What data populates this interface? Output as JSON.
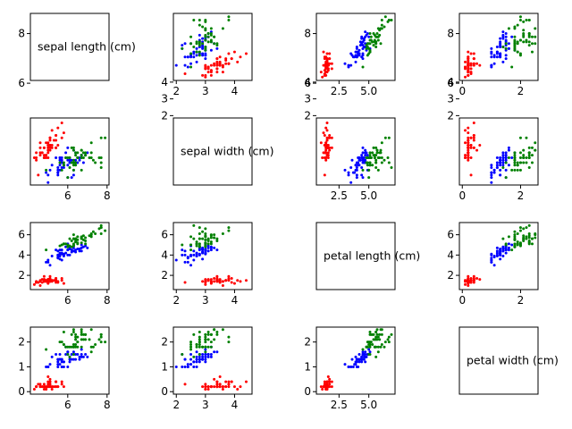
{
  "chart_data": {
    "type": "scatter-matrix",
    "variables": [
      "sepal length (cm)",
      "sepal width (cm)",
      "petal length (cm)",
      "petal width (cm)"
    ],
    "axis_limits": [
      [
        4.1,
        8.1
      ],
      [
        1.9,
        4.6
      ],
      [
        0.6,
        7.2
      ],
      [
        -0.1,
        2.6
      ]
    ],
    "ticks": [
      {
        "values": [
          6,
          8
        ],
        "labels": [
          "6",
          "8"
        ]
      },
      {
        "values": [
          2,
          3,
          4
        ],
        "labels": [
          "2",
          "3",
          "4"
        ]
      },
      {
        "values": [
          2.5,
          5.0
        ],
        "labels": [
          "2.5",
          "5.0"
        ]
      },
      {
        "values": [
          0,
          2
        ],
        "labels": [
          "0",
          "2"
        ]
      }
    ],
    "row_ticks": [
      {
        "values": [
          2,
          3,
          4
        ],
        "labels": [
          "2",
          "3",
          "4"
        ]
      },
      {
        "values": [
          6,
          8
        ],
        "labels": [
          "6",
          "8"
        ]
      },
      {
        "values": [
          2,
          4,
          6
        ],
        "labels": [
          "2",
          "4",
          "6"
        ]
      },
      {
        "values": [
          0,
          1,
          2
        ],
        "labels": [
          "0",
          "1",
          "2"
        ]
      }
    ],
    "series": [
      {
        "color": "#ff0000",
        "count": 50
      },
      {
        "color": "#0000ff",
        "count": 50
      },
      {
        "color": "#008000",
        "count": 50
      }
    ],
    "data": [
      [
        5.1,
        3.5,
        1.4,
        0.2,
        0
      ],
      [
        4.9,
        3.0,
        1.4,
        0.2,
        0
      ],
      [
        4.7,
        3.2,
        1.3,
        0.2,
        0
      ],
      [
        4.6,
        3.1,
        1.5,
        0.2,
        0
      ],
      [
        5.0,
        3.6,
        1.4,
        0.2,
        0
      ],
      [
        5.4,
        3.9,
        1.7,
        0.4,
        0
      ],
      [
        4.6,
        3.4,
        1.4,
        0.3,
        0
      ],
      [
        5.0,
        3.4,
        1.5,
        0.2,
        0
      ],
      [
        4.4,
        2.9,
        1.4,
        0.2,
        0
      ],
      [
        4.9,
        3.1,
        1.5,
        0.1,
        0
      ],
      [
        5.4,
        3.7,
        1.5,
        0.2,
        0
      ],
      [
        4.8,
        3.4,
        1.6,
        0.2,
        0
      ],
      [
        4.8,
        3.0,
        1.4,
        0.1,
        0
      ],
      [
        4.3,
        3.0,
        1.1,
        0.1,
        0
      ],
      [
        5.8,
        4.0,
        1.2,
        0.2,
        0
      ],
      [
        5.7,
        4.4,
        1.5,
        0.4,
        0
      ],
      [
        5.4,
        3.9,
        1.3,
        0.4,
        0
      ],
      [
        5.1,
        3.5,
        1.4,
        0.3,
        0
      ],
      [
        5.7,
        3.8,
        1.7,
        0.3,
        0
      ],
      [
        5.1,
        3.8,
        1.5,
        0.3,
        0
      ],
      [
        5.4,
        3.4,
        1.7,
        0.2,
        0
      ],
      [
        5.1,
        3.7,
        1.5,
        0.4,
        0
      ],
      [
        4.6,
        3.6,
        1.0,
        0.2,
        0
      ],
      [
        5.1,
        3.3,
        1.7,
        0.5,
        0
      ],
      [
        4.8,
        3.4,
        1.9,
        0.2,
        0
      ],
      [
        5.0,
        3.0,
        1.6,
        0.2,
        0
      ],
      [
        5.0,
        3.4,
        1.6,
        0.4,
        0
      ],
      [
        5.2,
        3.5,
        1.5,
        0.2,
        0
      ],
      [
        5.2,
        3.4,
        1.4,
        0.2,
        0
      ],
      [
        4.7,
        3.2,
        1.6,
        0.2,
        0
      ],
      [
        4.8,
        3.1,
        1.6,
        0.2,
        0
      ],
      [
        5.4,
        3.4,
        1.5,
        0.4,
        0
      ],
      [
        5.2,
        4.1,
        1.5,
        0.1,
        0
      ],
      [
        5.5,
        4.2,
        1.4,
        0.2,
        0
      ],
      [
        4.9,
        3.1,
        1.5,
        0.2,
        0
      ],
      [
        5.0,
        3.2,
        1.2,
        0.2,
        0
      ],
      [
        5.5,
        3.5,
        1.3,
        0.2,
        0
      ],
      [
        4.9,
        3.6,
        1.4,
        0.1,
        0
      ],
      [
        4.4,
        3.0,
        1.3,
        0.2,
        0
      ],
      [
        5.1,
        3.4,
        1.5,
        0.2,
        0
      ],
      [
        5.0,
        3.5,
        1.3,
        0.3,
        0
      ],
      [
        4.5,
        2.3,
        1.3,
        0.3,
        0
      ],
      [
        4.4,
        3.2,
        1.3,
        0.2,
        0
      ],
      [
        5.0,
        3.5,
        1.6,
        0.6,
        0
      ],
      [
        5.1,
        3.8,
        1.9,
        0.4,
        0
      ],
      [
        4.8,
        3.0,
        1.4,
        0.3,
        0
      ],
      [
        5.1,
        3.8,
        1.6,
        0.2,
        0
      ],
      [
        4.6,
        3.2,
        1.4,
        0.2,
        0
      ],
      [
        5.3,
        3.7,
        1.5,
        0.2,
        0
      ],
      [
        5.0,
        3.3,
        1.4,
        0.2,
        0
      ],
      [
        7.0,
        3.2,
        4.7,
        1.4,
        1
      ],
      [
        6.4,
        3.2,
        4.5,
        1.5,
        1
      ],
      [
        6.9,
        3.1,
        4.9,
        1.5,
        1
      ],
      [
        5.5,
        2.3,
        4.0,
        1.3,
        1
      ],
      [
        6.5,
        2.8,
        4.6,
        1.5,
        1
      ],
      [
        5.7,
        2.8,
        4.5,
        1.3,
        1
      ],
      [
        6.3,
        3.3,
        4.7,
        1.6,
        1
      ],
      [
        4.9,
        2.4,
        3.3,
        1.0,
        1
      ],
      [
        6.6,
        2.9,
        4.6,
        1.3,
        1
      ],
      [
        5.2,
        2.7,
        3.9,
        1.4,
        1
      ],
      [
        5.0,
        2.0,
        3.5,
        1.0,
        1
      ],
      [
        5.9,
        3.0,
        4.2,
        1.5,
        1
      ],
      [
        6.0,
        2.2,
        4.0,
        1.0,
        1
      ],
      [
        6.1,
        2.9,
        4.7,
        1.4,
        1
      ],
      [
        5.6,
        2.9,
        3.6,
        1.3,
        1
      ],
      [
        6.7,
        3.1,
        4.4,
        1.4,
        1
      ],
      [
        5.6,
        3.0,
        4.5,
        1.5,
        1
      ],
      [
        5.8,
        2.7,
        4.1,
        1.0,
        1
      ],
      [
        6.2,
        2.2,
        4.5,
        1.5,
        1
      ],
      [
        5.6,
        2.5,
        3.9,
        1.1,
        1
      ],
      [
        5.9,
        3.2,
        4.8,
        1.8,
        1
      ],
      [
        6.1,
        2.8,
        4.0,
        1.3,
        1
      ],
      [
        6.3,
        2.5,
        4.9,
        1.5,
        1
      ],
      [
        6.1,
        2.8,
        4.7,
        1.2,
        1
      ],
      [
        6.4,
        2.9,
        4.3,
        1.3,
        1
      ],
      [
        6.6,
        3.0,
        4.4,
        1.4,
        1
      ],
      [
        6.8,
        2.8,
        4.8,
        1.4,
        1
      ],
      [
        6.7,
        3.0,
        5.0,
        1.7,
        1
      ],
      [
        6.0,
        2.9,
        4.5,
        1.5,
        1
      ],
      [
        5.7,
        2.6,
        3.5,
        1.0,
        1
      ],
      [
        5.5,
        2.4,
        3.8,
        1.1,
        1
      ],
      [
        5.5,
        2.4,
        3.7,
        1.0,
        1
      ],
      [
        5.8,
        2.7,
        3.9,
        1.2,
        1
      ],
      [
        6.0,
        2.7,
        5.1,
        1.6,
        1
      ],
      [
        5.4,
        3.0,
        4.5,
        1.5,
        1
      ],
      [
        6.0,
        3.4,
        4.5,
        1.6,
        1
      ],
      [
        6.7,
        3.1,
        4.7,
        1.5,
        1
      ],
      [
        6.3,
        2.3,
        4.4,
        1.3,
        1
      ],
      [
        5.6,
        3.0,
        4.1,
        1.3,
        1
      ],
      [
        5.5,
        2.5,
        4.0,
        1.3,
        1
      ],
      [
        5.5,
        2.6,
        4.4,
        1.2,
        1
      ],
      [
        6.1,
        3.0,
        4.6,
        1.4,
        1
      ],
      [
        5.8,
        2.6,
        4.0,
        1.2,
        1
      ],
      [
        5.0,
        2.3,
        3.3,
        1.0,
        1
      ],
      [
        5.6,
        2.7,
        4.2,
        1.3,
        1
      ],
      [
        5.7,
        3.0,
        4.2,
        1.2,
        1
      ],
      [
        5.7,
        2.9,
        4.2,
        1.3,
        1
      ],
      [
        6.2,
        2.9,
        4.3,
        1.3,
        1
      ],
      [
        5.1,
        2.5,
        3.0,
        1.1,
        1
      ],
      [
        5.7,
        2.8,
        4.1,
        1.3,
        1
      ],
      [
        6.3,
        3.3,
        6.0,
        2.5,
        2
      ],
      [
        5.8,
        2.7,
        5.1,
        1.9,
        2
      ],
      [
        7.1,
        3.0,
        5.9,
        2.1,
        2
      ],
      [
        6.3,
        2.9,
        5.6,
        1.8,
        2
      ],
      [
        6.5,
        3.0,
        5.8,
        2.2,
        2
      ],
      [
        7.6,
        3.0,
        6.6,
        2.1,
        2
      ],
      [
        4.9,
        2.5,
        4.5,
        1.7,
        2
      ],
      [
        7.3,
        2.9,
        6.3,
        1.8,
        2
      ],
      [
        6.7,
        2.5,
        5.8,
        1.8,
        2
      ],
      [
        7.2,
        3.6,
        6.1,
        2.5,
        2
      ],
      [
        6.5,
        3.2,
        5.1,
        2.0,
        2
      ],
      [
        6.4,
        2.7,
        5.3,
        1.9,
        2
      ],
      [
        6.8,
        3.0,
        5.5,
        2.1,
        2
      ],
      [
        5.7,
        2.5,
        5.0,
        2.0,
        2
      ],
      [
        5.8,
        2.8,
        5.1,
        2.4,
        2
      ],
      [
        6.4,
        3.2,
        5.3,
        2.3,
        2
      ],
      [
        6.5,
        3.0,
        5.5,
        1.8,
        2
      ],
      [
        7.7,
        3.8,
        6.7,
        2.2,
        2
      ],
      [
        7.7,
        2.6,
        6.9,
        2.3,
        2
      ],
      [
        6.0,
        2.2,
        5.0,
        1.5,
        2
      ],
      [
        6.9,
        3.2,
        5.7,
        2.3,
        2
      ],
      [
        5.6,
        2.8,
        4.9,
        2.0,
        2
      ],
      [
        7.7,
        2.8,
        6.7,
        2.0,
        2
      ],
      [
        6.3,
        2.7,
        4.9,
        1.8,
        2
      ],
      [
        6.7,
        3.3,
        5.7,
        2.1,
        2
      ],
      [
        7.2,
        3.2,
        6.0,
        1.8,
        2
      ],
      [
        6.2,
        2.8,
        4.8,
        1.8,
        2
      ],
      [
        6.1,
        3.0,
        4.9,
        1.8,
        2
      ],
      [
        6.4,
        2.8,
        5.6,
        2.1,
        2
      ],
      [
        7.2,
        3.0,
        5.8,
        1.6,
        2
      ],
      [
        7.4,
        2.8,
        6.1,
        1.9,
        2
      ],
      [
        7.9,
        3.8,
        6.4,
        2.0,
        2
      ],
      [
        6.4,
        2.8,
        5.6,
        2.2,
        2
      ],
      [
        6.3,
        2.8,
        5.1,
        1.5,
        2
      ],
      [
        6.1,
        2.6,
        5.6,
        1.4,
        2
      ],
      [
        7.7,
        3.0,
        6.1,
        2.3,
        2
      ],
      [
        6.3,
        3.4,
        5.6,
        2.4,
        2
      ],
      [
        6.4,
        3.1,
        5.5,
        1.8,
        2
      ],
      [
        6.0,
        3.0,
        4.8,
        1.8,
        2
      ],
      [
        6.9,
        3.1,
        5.4,
        2.1,
        2
      ],
      [
        6.7,
        3.1,
        5.6,
        2.4,
        2
      ],
      [
        6.9,
        3.1,
        5.1,
        2.3,
        2
      ],
      [
        5.8,
        2.7,
        5.1,
        1.9,
        2
      ],
      [
        6.8,
        3.2,
        5.9,
        2.3,
        2
      ],
      [
        6.7,
        3.3,
        5.7,
        2.5,
        2
      ],
      [
        6.7,
        3.0,
        5.2,
        2.3,
        2
      ],
      [
        6.3,
        2.5,
        5.0,
        1.9,
        2
      ],
      [
        6.5,
        3.0,
        5.2,
        2.0,
        2
      ],
      [
        6.2,
        3.4,
        5.4,
        2.3,
        2
      ],
      [
        5.9,
        3.0,
        5.1,
        1.8,
        2
      ]
    ]
  }
}
